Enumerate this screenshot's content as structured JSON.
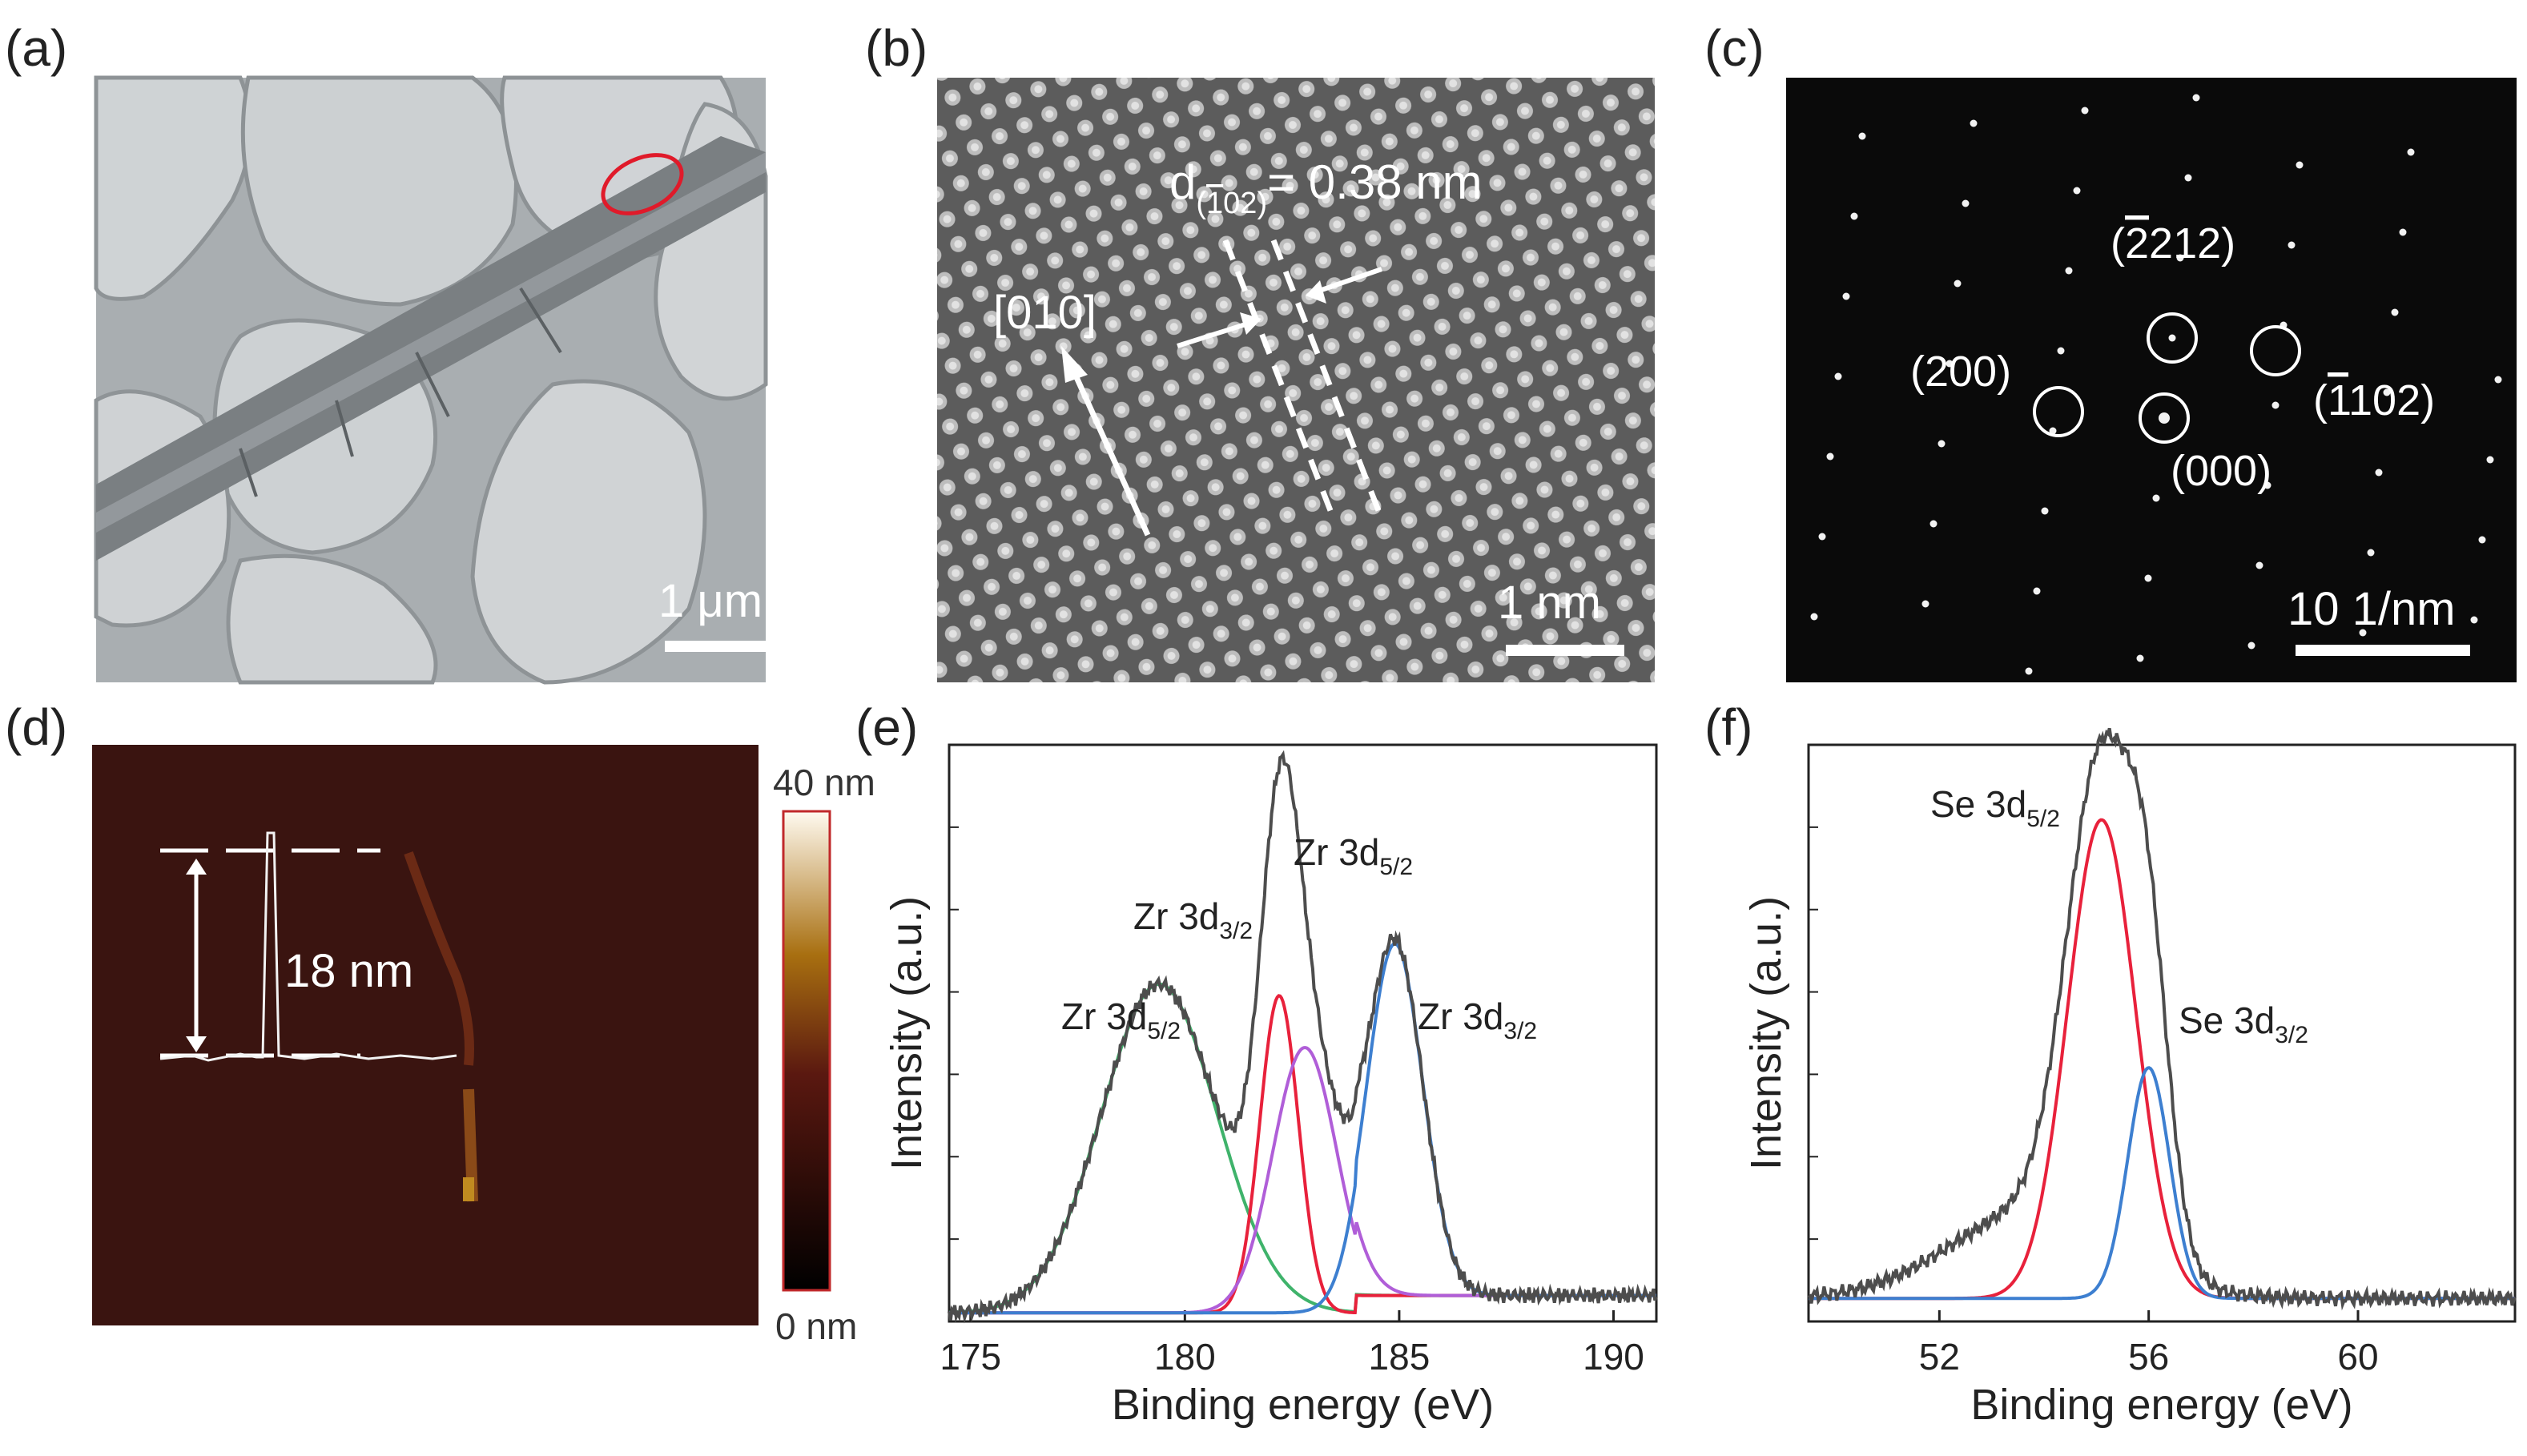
{
  "panels": {
    "a": {
      "label": "(a)",
      "scalebar": "1 μm"
    },
    "b": {
      "label": "(b)",
      "direction": "[010]",
      "spacing_label": "d",
      "spacing_sub": "(",
      "spacing_bar": "1",
      "spacing_sub2": "02)",
      "spacing_value": "= 0.38 nm",
      "scalebar": "1 nm"
    },
    "c": {
      "label": "(c)",
      "spots": [
        "(",
        "212)",
        "(200)",
        "(",
        "102)",
        "(000)"
      ],
      "bar_digit_212": "2",
      "bar_digit_102": "1",
      "scalebar": "10 1/nm"
    },
    "d": {
      "label": "(d)",
      "height": "18 nm",
      "colorbar_max": "40 nm",
      "colorbar_min": "0 nm"
    },
    "e": {
      "label": "(e)"
    },
    "f": {
      "label": "(f)"
    }
  },
  "colors": {
    "envelope": "#4d4d4d",
    "red": "#e8213b",
    "blue": "#3d7fd0",
    "green": "#3fb36b",
    "violet": "#b05ed8",
    "afm_bg": "#3a1410",
    "diffraction_bg": "#0a0a0a"
  },
  "chart_data": [
    {
      "panel": "e",
      "type": "line",
      "xlabel": "Binding energy (eV)",
      "ylabel": "Intensity (a.u.)",
      "xlim": [
        174.5,
        191
      ],
      "xticks": [
        175,
        180,
        185,
        190
      ],
      "peaks": [
        {
          "label_main": "Zr 3d",
          "label_sub": "5/2",
          "x": 179.4,
          "color": "green"
        },
        {
          "label_main": "Zr 3d",
          "label_sub": "3/2",
          "x": 182.2,
          "color": "red"
        },
        {
          "label_main": "Zr 3d",
          "label_sub": "5/2",
          "x": 182.5,
          "color": "envelope"
        },
        {
          "label_main": "Zr 3d",
          "label_sub": "3/2",
          "x": 185.0,
          "color": "blue"
        }
      ],
      "series": [
        {
          "color": "green",
          "center": 179.4,
          "height": 0.57,
          "width": 1.35
        },
        {
          "color": "red",
          "center": 182.2,
          "height": 0.55,
          "width": 0.45
        },
        {
          "color": "violet",
          "center": 182.8,
          "height": 0.46,
          "width": 0.75
        },
        {
          "color": "blue",
          "center": 184.9,
          "height": 0.61,
          "width": 0.65
        }
      ]
    },
    {
      "panel": "f",
      "type": "line",
      "xlabel": "Binding energy (eV)",
      "ylabel": "Intensity (a.u.)",
      "xlim": [
        49.5,
        63
      ],
      "xticks": [
        52,
        56,
        60
      ],
      "peaks": [
        {
          "label_main": "Se 3d",
          "label_sub": "5/2",
          "x": 55.1,
          "color": "red"
        },
        {
          "label_main": "Se 3d",
          "label_sub": "3/2",
          "x": 56.0,
          "color": "blue"
        }
      ],
      "series": [
        {
          "color": "red",
          "center": 55.1,
          "height": 0.83,
          "width": 0.65
        },
        {
          "color": "blue",
          "center": 56.0,
          "height": 0.4,
          "width": 0.4
        },
        {
          "color": "shoulder",
          "center": 53.8,
          "height": 0.15,
          "width": 1.6
        }
      ]
    }
  ]
}
